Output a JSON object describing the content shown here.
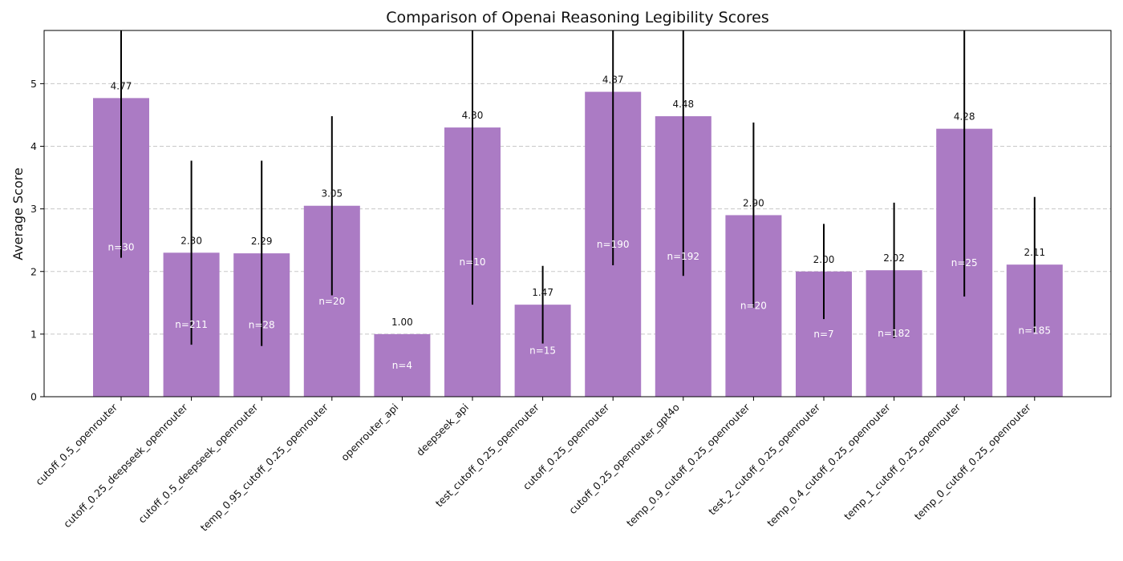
{
  "chart_data": {
    "type": "bar",
    "title": "Comparison of Openai Reasoning Legibility Scores",
    "xlabel": "",
    "ylabel": "Average Score",
    "ylim": [
      0,
      5.85
    ],
    "yticks": [
      0,
      1,
      2,
      3,
      4,
      5
    ],
    "grid": true,
    "bar_color": "#ab7bc4",
    "categories": [
      "cutoff_0.5_openrouter",
      "cutoff_0.25_deepseek_openrouter",
      "cutoff_0.5_deepseek_openrouter",
      "temp_0.95_cutoff_0.25_openrouter",
      "openrouter_api",
      "deepseek_api",
      "test_cutoff_0.25_openrouter",
      "cutoff_0.25_openrouter",
      "cutoff_0.25_openrouter_gpt4o",
      "temp_0.9_cutoff_0.25_openrouter",
      "test_2_cutoff_0.25_openrouter",
      "temp_0.4_cutoff_0.25_openrouter",
      "temp_1_cutoff_0.25_openrouter",
      "temp_0_cutoff_0.25_openrouter"
    ],
    "values": [
      4.77,
      2.3,
      2.29,
      3.05,
      1.0,
      4.3,
      1.47,
      4.87,
      4.48,
      2.9,
      2.0,
      2.02,
      4.28,
      2.11
    ],
    "value_labels": [
      "4.77",
      "2.30",
      "2.29",
      "3.05",
      "1.00",
      "4.30",
      "1.47",
      "4.87",
      "4.48",
      "2.90",
      "2.00",
      "2.02",
      "4.28",
      "2.11"
    ],
    "errors": [
      2.55,
      1.47,
      1.48,
      1.43,
      0,
      2.83,
      0.62,
      2.77,
      2.55,
      1.48,
      0.76,
      1.08,
      2.68,
      1.08
    ],
    "n_labels": [
      "n=30",
      "n=211",
      "n=28",
      "n=20",
      "n=4",
      "n=10",
      "n=15",
      "n=190",
      "n=192",
      "n=20",
      "n=7",
      "n=182",
      "n=25",
      "n=185"
    ]
  }
}
